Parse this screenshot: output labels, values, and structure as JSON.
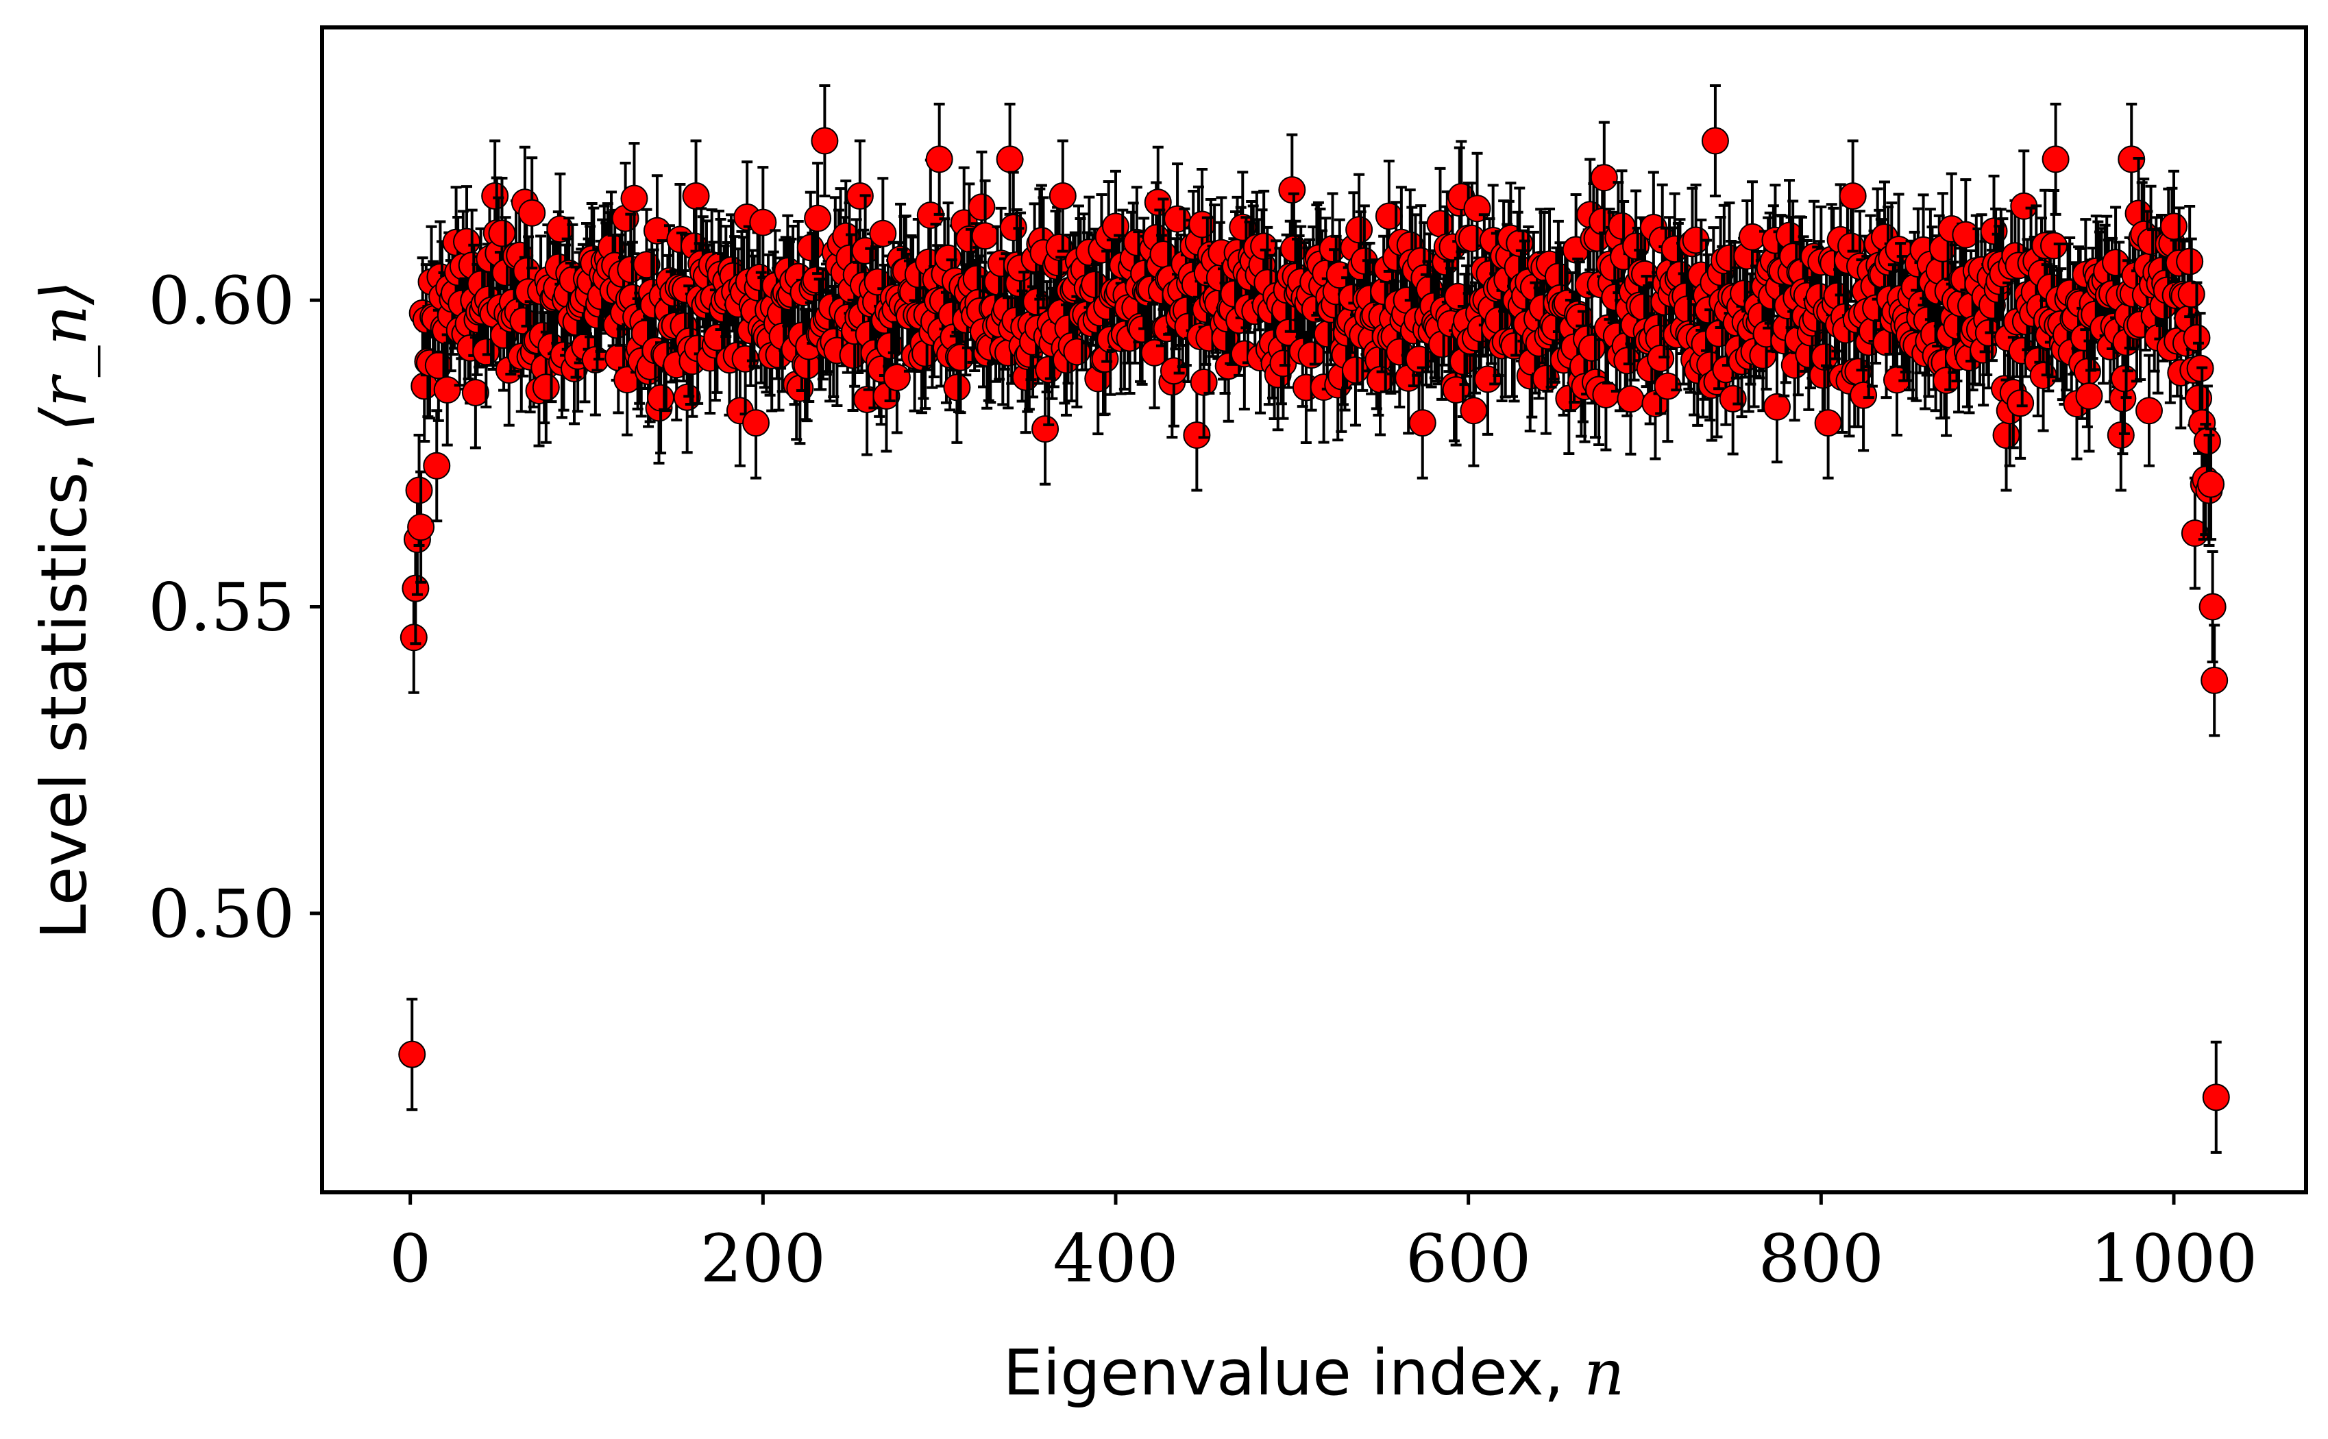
{
  "chart_data": {
    "type": "scatter",
    "marker": "filled-circle-with-error-bars",
    "marker_color": "#ff0000",
    "marker_edge_color": "#000000",
    "errorbar_color": "#000000",
    "xlabel": {
      "text": "Eigenvalue index, ",
      "var": "n"
    },
    "ylabel": {
      "text": "Level statistics, ",
      "var": "⟨r_n⟩"
    },
    "xlim": [
      -50,
      1075
    ],
    "ylim": [
      0.4545,
      0.6445
    ],
    "xticks": [
      0,
      200,
      400,
      600,
      800,
      1000
    ],
    "xtick_labels": [
      "0",
      "200",
      "400",
      "600",
      "800",
      "1000"
    ],
    "yticks": [
      0.5,
      0.55,
      0.6
    ],
    "ytick_labels": [
      "0.50",
      "0.55",
      "0.60"
    ],
    "grid": false,
    "n_points": 1024,
    "typical_errorbar": 0.009,
    "plateau_mean": 0.599,
    "plateau_spread": 0.007,
    "edge_points": [
      {
        "x": 1,
        "y": 0.477,
        "err": 0.009
      },
      {
        "x": 2,
        "y": 0.545,
        "err": 0.009
      },
      {
        "x": 3,
        "y": 0.553,
        "err": 0.009
      },
      {
        "x": 4,
        "y": 0.561,
        "err": 0.009
      },
      {
        "x": 5,
        "y": 0.569,
        "err": 0.009
      },
      {
        "x": 6,
        "y": 0.563,
        "err": 0.009
      },
      {
        "x": 8,
        "y": 0.586,
        "err": 0.009
      },
      {
        "x": 10,
        "y": 0.59,
        "err": 0.009
      },
      {
        "x": 12,
        "y": 0.603,
        "err": 0.009
      },
      {
        "x": 15,
        "y": 0.573,
        "err": 0.009
      },
      {
        "x": 1010,
        "y": 0.601,
        "err": 0.009
      },
      {
        "x": 1012,
        "y": 0.562,
        "err": 0.009
      },
      {
        "x": 1014,
        "y": 0.584,
        "err": 0.009
      },
      {
        "x": 1016,
        "y": 0.58,
        "err": 0.009
      },
      {
        "x": 1017,
        "y": 0.57,
        "err": 0.009
      },
      {
        "x": 1019,
        "y": 0.577,
        "err": 0.009
      },
      {
        "x": 1020,
        "y": 0.569,
        "err": 0.009
      },
      {
        "x": 1021,
        "y": 0.57,
        "err": 0.009
      },
      {
        "x": 1022,
        "y": 0.55,
        "err": 0.009
      },
      {
        "x": 1023,
        "y": 0.538,
        "err": 0.009
      },
      {
        "x": 1024,
        "y": 0.47,
        "err": 0.009
      }
    ],
    "bulk_extremes": [
      {
        "x": 48,
        "y": 0.617
      },
      {
        "x": 235,
        "y": 0.626
      },
      {
        "x": 300,
        "y": 0.623
      },
      {
        "x": 340,
        "y": 0.623
      },
      {
        "x": 500,
        "y": 0.618
      },
      {
        "x": 677,
        "y": 0.62
      },
      {
        "x": 740,
        "y": 0.626
      },
      {
        "x": 933,
        "y": 0.623
      },
      {
        "x": 976,
        "y": 0.623
      },
      {
        "x": 196,
        "y": 0.58
      },
      {
        "x": 360,
        "y": 0.579
      },
      {
        "x": 446,
        "y": 0.578
      },
      {
        "x": 574,
        "y": 0.58
      },
      {
        "x": 804,
        "y": 0.58
      },
      {
        "x": 905,
        "y": 0.578
      },
      {
        "x": 970,
        "y": 0.578
      }
    ]
  }
}
